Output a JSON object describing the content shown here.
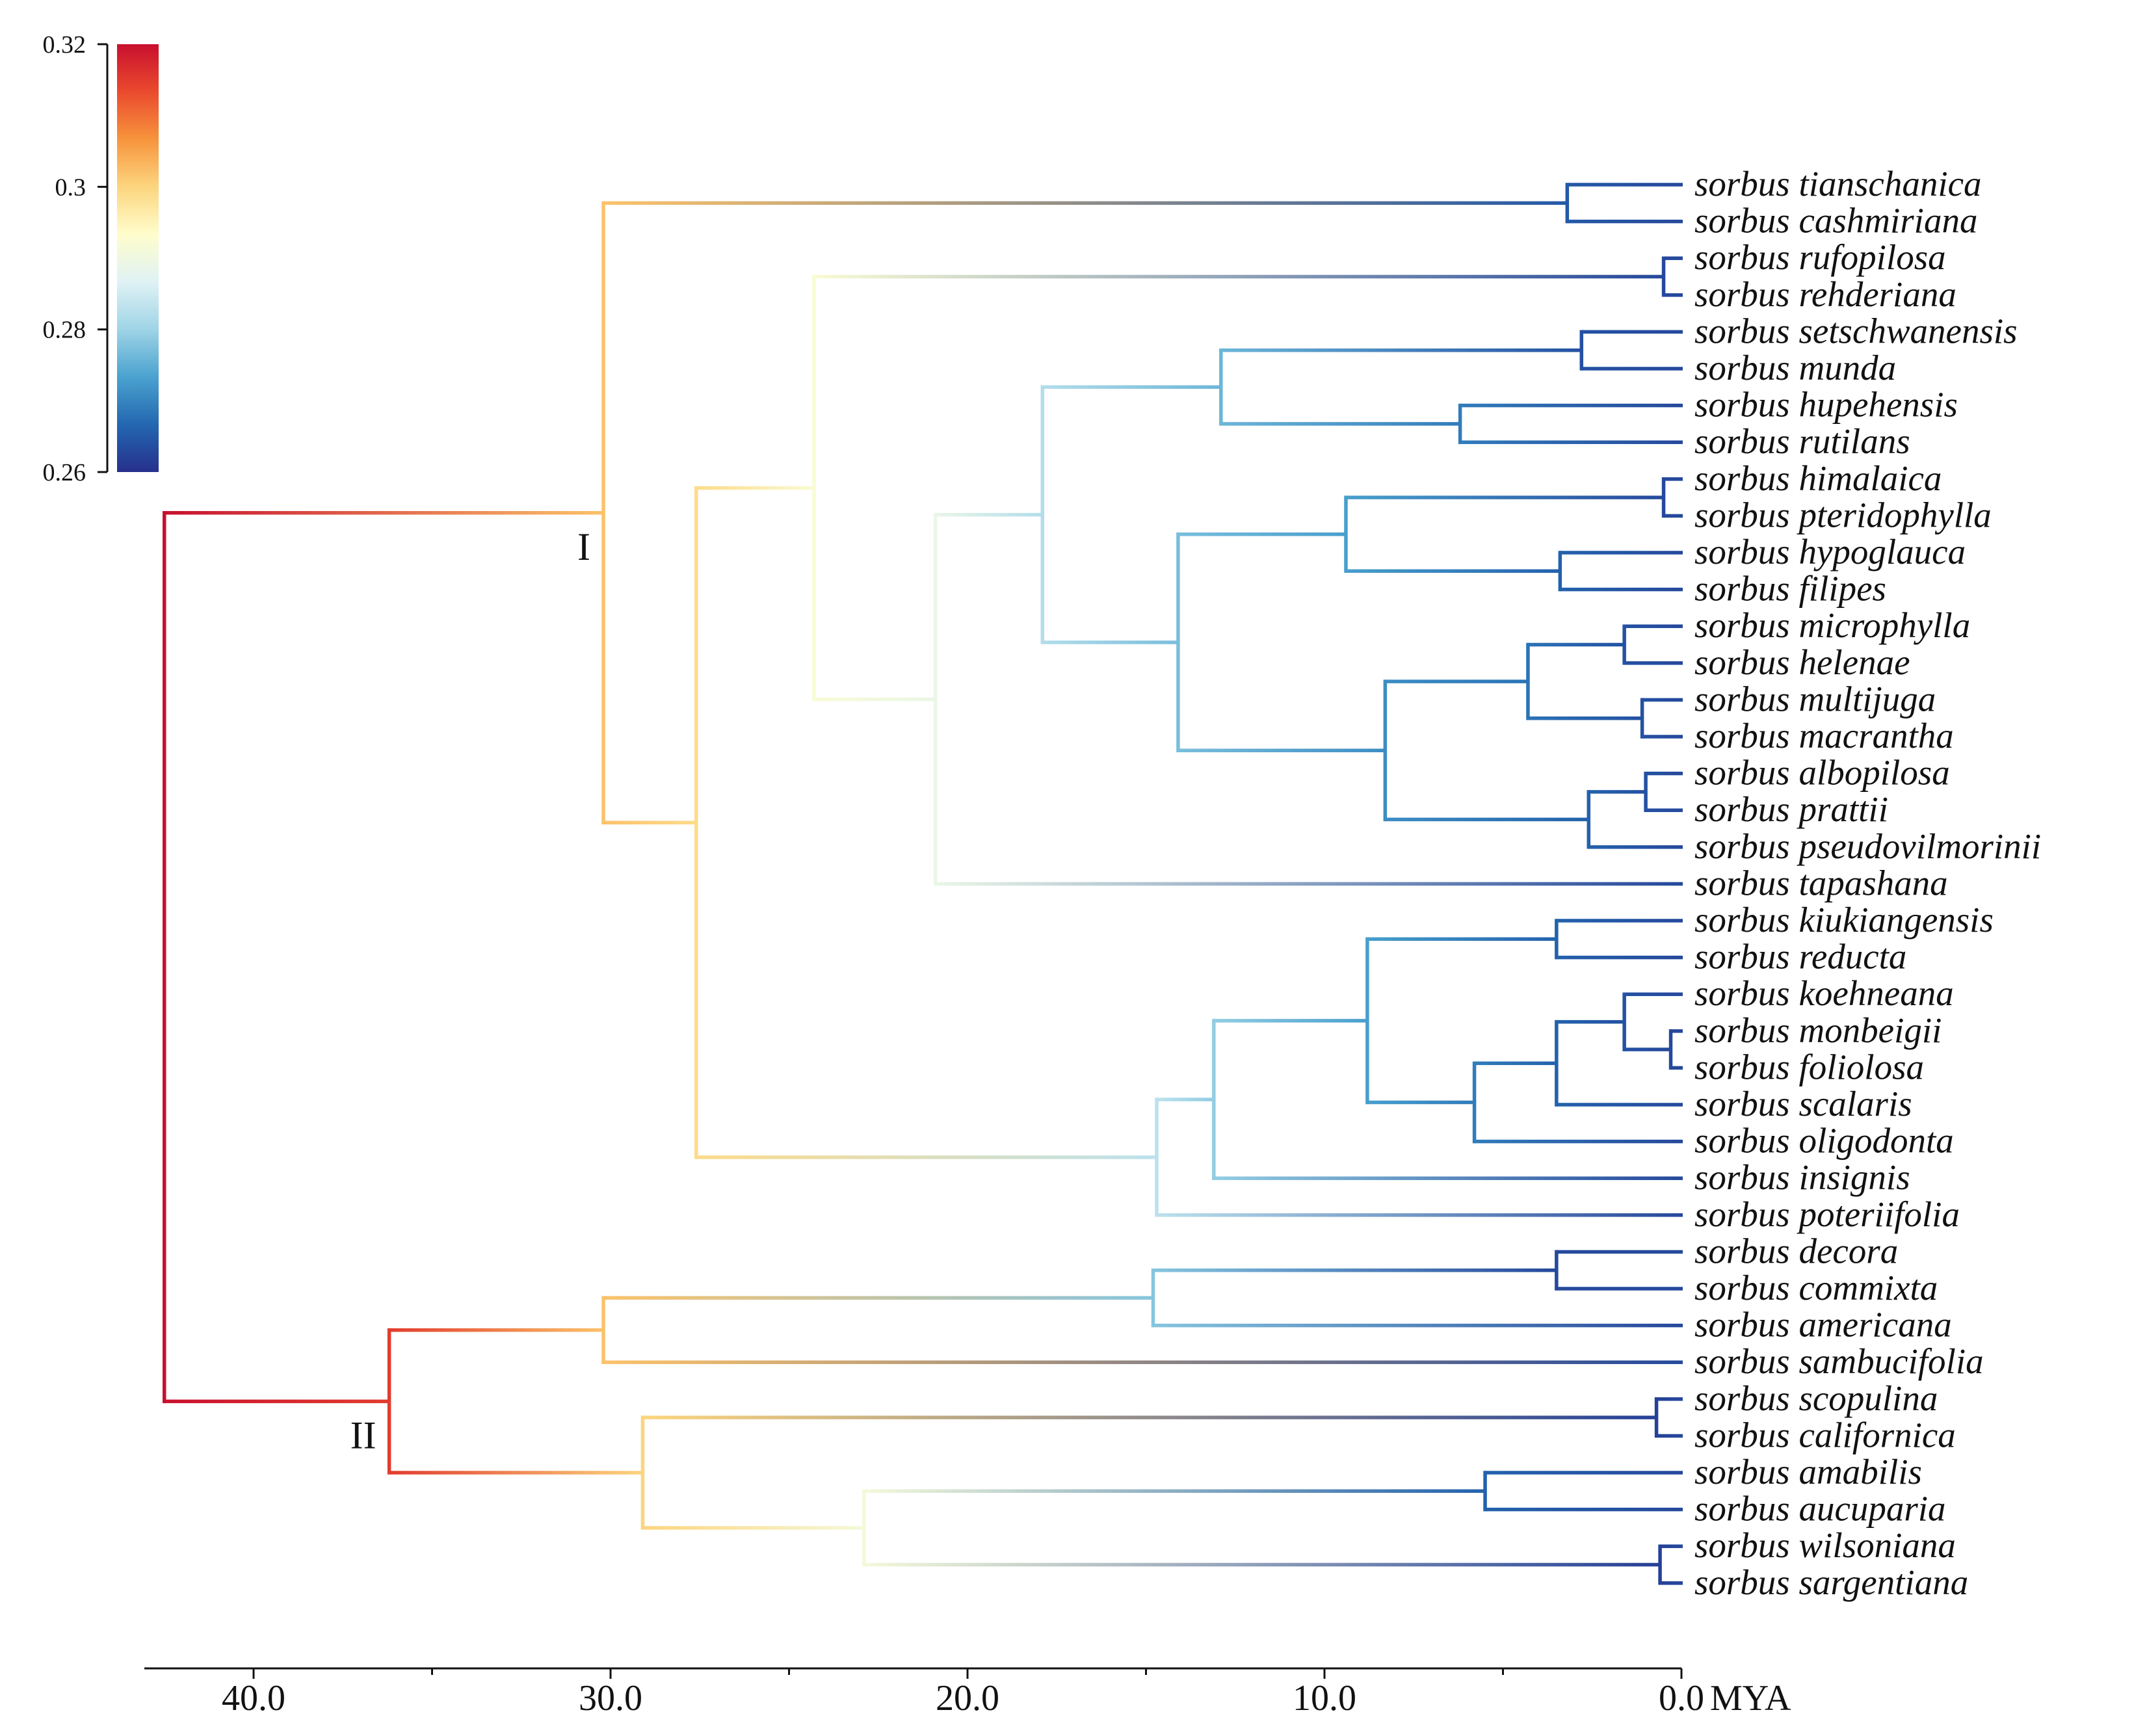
{
  "colorbar": {
    "ticks": [
      "0.32",
      "0.3",
      "0.28",
      "0.26"
    ],
    "stops": [
      "#c8102e",
      "#ea4a2e",
      "#f7943c",
      "#fcd57e",
      "#fffdcc",
      "#dff2f5",
      "#9fd4e6",
      "#4aa2cf",
      "#2367b0",
      "#26308c"
    ]
  },
  "axis": {
    "ticks": [
      "40.0",
      "30.0",
      "20.0",
      "10.0",
      "0.0"
    ],
    "unit": "MYA"
  },
  "clades": {
    "first": "I",
    "second": "II"
  },
  "taxa": [
    "sorbus tianschanica",
    "sorbus cashmiriana",
    "sorbus rufopilosa",
    "sorbus rehderiana",
    "sorbus setschwanensis",
    "sorbus munda",
    "sorbus hupehensis",
    "sorbus rutilans",
    "sorbus himalaica",
    "sorbus pteridophylla",
    "sorbus hypoglauca",
    "sorbus filipes",
    "sorbus microphylla",
    "sorbus helenae",
    "sorbus multijuga",
    "sorbus macrantha",
    "sorbus albopilosa",
    "sorbus prattii",
    "sorbus pseudovilmorinii",
    "sorbus tapashana",
    "sorbus kiukiangensis",
    "sorbus reducta",
    "sorbus koehneana",
    "sorbus monbeigii",
    "sorbus foliolosa",
    "sorbus scalaris",
    "sorbus oligodonta",
    "sorbus insignis",
    "sorbus poteriifolia",
    "sorbus decora",
    "sorbus commixta",
    "sorbus americana",
    "sorbus sambucifolia",
    "sorbus scopulina",
    "sorbus californica",
    "sorbus amabilis",
    "sorbus aucuparia",
    "sorbus wilsoniana",
    "sorbus sargentiana"
  ],
  "tree": {
    "age": 42.5,
    "rate": 0.32,
    "children": [
      {
        "age": 30.2,
        "rate": 0.302,
        "label": "first",
        "children": [
          {
            "age": 3.2,
            "rate": 0.265,
            "children": [
              {
                "leaf": 0
              },
              {
                "leaf": 1
              }
            ]
          },
          {
            "age": 27.6,
            "rate": 0.299,
            "children": [
              {
                "age": 24.3,
                "rate": 0.292,
                "children": [
                  {
                    "age": 0.5,
                    "rate": 0.263,
                    "children": [
                      {
                        "leaf": 2
                      },
                      {
                        "leaf": 3
                      }
                    ]
                  },
                  {
                    "age": 20.9,
                    "rate": 0.289,
                    "children": [
                      {
                        "age": 17.9,
                        "rate": 0.282,
                        "children": [
                          {
                            "age": 12.9,
                            "rate": 0.276,
                            "children": [
                              {
                                "age": 2.8,
                                "rate": 0.264,
                                "children": [
                                  {
                                    "leaf": 4
                                  },
                                  {
                                    "leaf": 5
                                  }
                                ]
                              },
                              {
                                "age": 6.2,
                                "rate": 0.269,
                                "children": [
                                  {
                                    "leaf": 6
                                  },
                                  {
                                    "leaf": 7
                                  }
                                ]
                              }
                            ]
                          },
                          {
                            "age": 14.1,
                            "rate": 0.277,
                            "children": [
                              {
                                "age": 9.4,
                                "rate": 0.273,
                                "children": [
                                  {
                                    "age": 0.5,
                                    "rate": 0.263,
                                    "children": [
                                      {
                                        "leaf": 8
                                      },
                                      {
                                        "leaf": 9
                                      }
                                    ]
                                  },
                                  {
                                    "age": 3.4,
                                    "rate": 0.266,
                                    "children": [
                                      {
                                        "leaf": 10
                                      },
                                      {
                                        "leaf": 11
                                      }
                                    ]
                                  }
                                ]
                              },
                              {
                                "age": 8.3,
                                "rate": 0.271,
                                "children": [
                                  {
                                    "age": 4.3,
                                    "rate": 0.268,
                                    "children": [
                                      {
                                        "age": 1.6,
                                        "rate": 0.264,
                                        "children": [
                                          {
                                            "leaf": 12
                                          },
                                          {
                                            "leaf": 13
                                          }
                                        ]
                                      },
                                      {
                                        "age": 1.1,
                                        "rate": 0.264,
                                        "children": [
                                          {
                                            "leaf": 14
                                          },
                                          {
                                            "leaf": 15
                                          }
                                        ]
                                      }
                                    ]
                                  },
                                  {
                                    "age": 2.6,
                                    "rate": 0.266,
                                    "children": [
                                      {
                                        "age": 1.0,
                                        "rate": 0.264,
                                        "children": [
                                          {
                                            "leaf": 16
                                          },
                                          {
                                            "leaf": 17
                                          }
                                        ]
                                      },
                                      {
                                        "leaf": 18
                                      }
                                    ]
                                  }
                                ]
                              }
                            ]
                          }
                        ]
                      },
                      {
                        "leaf": 19
                      }
                    ]
                  }
                ]
              },
              {
                "age": 14.7,
                "rate": 0.283,
                "children": [
                  {
                    "age": 13.1,
                    "rate": 0.279,
                    "children": [
                      {
                        "age": 8.8,
                        "rate": 0.273,
                        "children": [
                          {
                            "age": 3.5,
                            "rate": 0.266,
                            "children": [
                              {
                                "leaf": 20
                              },
                              {
                                "leaf": 21
                              }
                            ]
                          },
                          {
                            "age": 5.8,
                            "rate": 0.269,
                            "children": [
                              {
                                "age": 3.5,
                                "rate": 0.266,
                                "children": [
                                  {
                                    "age": 1.6,
                                    "rate": 0.264,
                                    "children": [
                                      {
                                        "leaf": 22
                                      },
                                      {
                                        "age": 0.3,
                                        "rate": 0.263,
                                        "children": [
                                          {
                                            "leaf": 23
                                          },
                                          {
                                            "leaf": 24
                                          }
                                        ]
                                      }
                                    ]
                                  },
                                  {
                                    "leaf": 25
                                  }
                                ]
                              },
                              {
                                "leaf": 26
                              }
                            ]
                          }
                        ]
                      },
                      {
                        "leaf": 27
                      }
                    ]
                  },
                  {
                    "leaf": 28
                  }
                ]
              }
            ]
          }
        ]
      },
      {
        "age": 36.2,
        "rate": 0.315,
        "label": "second",
        "children": [
          {
            "age": 30.2,
            "rate": 0.302,
            "children": [
              {
                "age": 14.8,
                "rate": 0.278,
                "children": [
                  {
                    "age": 3.5,
                    "rate": 0.263,
                    "children": [
                      {
                        "leaf": 29
                      },
                      {
                        "leaf": 30
                      }
                    ]
                  },
                  {
                    "leaf": 31
                  }
                ]
              },
              {
                "leaf": 32
              }
            ]
          },
          {
            "age": 29.1,
            "rate": 0.3,
            "children": [
              {
                "age": 0.7,
                "rate": 0.262,
                "children": [
                  {
                    "leaf": 33
                  },
                  {
                    "leaf": 34
                  }
                ]
              },
              {
                "age": 22.9,
                "rate": 0.291,
                "children": [
                  {
                    "age": 5.5,
                    "rate": 0.266,
                    "children": [
                      {
                        "leaf": 35
                      },
                      {
                        "leaf": 36
                      }
                    ]
                  },
                  {
                    "age": 0.6,
                    "rate": 0.262,
                    "children": [
                      {
                        "leaf": 37
                      },
                      {
                        "leaf": 38
                      }
                    ]
                  }
                ]
              }
            ]
          }
        ]
      }
    ]
  },
  "leaf_rate": 0.263
}
